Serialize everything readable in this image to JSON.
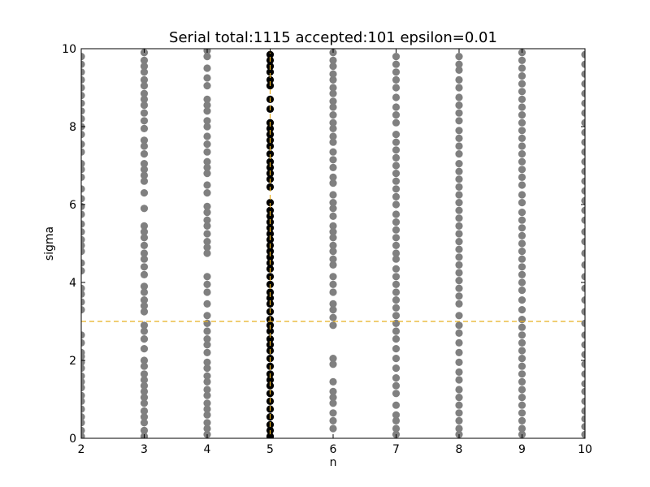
{
  "chart_data": {
    "type": "scatter",
    "title": "Serial total:1115 accepted:101 epsilon=0.01",
    "xlabel": "n",
    "ylabel": "sigma",
    "xlim": [
      2,
      10
    ],
    "ylim": [
      0,
      10
    ],
    "xticks": [
      "2",
      "3",
      "4",
      "5",
      "6",
      "7",
      "8",
      "9",
      "10"
    ],
    "yticks": [
      "0",
      "2",
      "4",
      "6",
      "8",
      "10"
    ],
    "grid": false,
    "reference_line": {
      "axis": "y",
      "value": 3,
      "style": "dashed",
      "color": "#e8b020"
    },
    "reference_vline": {
      "axis": "x",
      "value": 5,
      "style": "dashed",
      "color": "#e8b020"
    },
    "colors": {
      "rejected": "#808080",
      "accepted": "#000000"
    },
    "series": [
      {
        "color": "#808080",
        "points": [
          {
            "x": 2,
            "ys": [
              0.05,
              0.2,
              0.4,
              0.55,
              0.75,
              0.95,
              1.1,
              1.3,
              1.45,
              1.6,
              1.8,
              1.95,
              2.1,
              2.2,
              2.45,
              2.65,
              3.3,
              3.5,
              3.7,
              3.85,
              4.3,
              4.5,
              4.8,
              4.95,
              5.1,
              5.3,
              5.5,
              5.75,
              5.95,
              6.15,
              6.4,
              6.7,
              6.9,
              7.05,
              7.35,
              7.55,
              7.8,
              8.0,
              8.2,
              8.4,
              8.6,
              8.8,
              9.0,
              9.2,
              9.4,
              9.6,
              9.8
            ]
          },
          {
            "x": 3,
            "ys": [
              0.05,
              0.2,
              0.4,
              0.55,
              0.7,
              0.9,
              1.05,
              1.2,
              1.35,
              1.5,
              1.65,
              1.85,
              2.0,
              2.3,
              2.55,
              2.75,
              2.9,
              3.25,
              3.4,
              3.55,
              3.75,
              3.9,
              4.2,
              4.4,
              4.6,
              4.75,
              4.95,
              5.15,
              5.3,
              5.45,
              5.9,
              6.3,
              6.6,
              6.75,
              6.9,
              7.05,
              7.3,
              7.5,
              7.65,
              7.95,
              8.15,
              8.35,
              8.55,
              8.7,
              8.85,
              9.05,
              9.2,
              9.4,
              9.55,
              9.7,
              9.9
            ]
          },
          {
            "x": 4,
            "ys": [
              0.1,
              0.25,
              0.4,
              0.6,
              0.75,
              0.9,
              1.1,
              1.25,
              1.45,
              1.6,
              1.8,
              1.95,
              2.2,
              2.4,
              2.55,
              2.75,
              2.95,
              3.15,
              3.45,
              3.75,
              3.95,
              4.15,
              4.75,
              4.9,
              5.05,
              5.25,
              5.45,
              5.6,
              5.8,
              5.95,
              6.3,
              6.5,
              6.8,
              6.95,
              7.1,
              7.35,
              7.55,
              7.75,
              8.0,
              8.15,
              8.4,
              8.55,
              8.7,
              9.05,
              9.25,
              9.5,
              9.8,
              9.95
            ]
          },
          {
            "x": 6,
            "ys": [
              0.25,
              0.45,
              0.65,
              0.9,
              1.05,
              1.2,
              1.45,
              1.9,
              2.05,
              2.9,
              3.1,
              3.3,
              3.45,
              3.75,
              3.95,
              4.15,
              4.45,
              4.6,
              4.8,
              4.95,
              5.15,
              5.3,
              5.45,
              5.7,
              5.9,
              6.05,
              6.25,
              6.55,
              6.7,
              6.95,
              7.15,
              7.35,
              7.6,
              7.75,
              7.95,
              8.1,
              8.3,
              8.5,
              8.65,
              8.85,
              9.0,
              9.2,
              9.35,
              9.55,
              9.7,
              9.9
            ]
          },
          {
            "x": 7,
            "ys": [
              0.1,
              0.25,
              0.45,
              0.6,
              0.85,
              1.15,
              1.35,
              1.55,
              1.8,
              2.05,
              2.3,
              2.55,
              2.75,
              2.95,
              3.15,
              3.35,
              3.55,
              3.75,
              3.95,
              4.15,
              4.35,
              4.6,
              4.75,
              4.95,
              5.15,
              5.35,
              5.55,
              5.75,
              6.0,
              6.2,
              6.4,
              6.6,
              6.8,
              7.0,
              7.2,
              7.4,
              7.6,
              7.8,
              8.1,
              8.3,
              8.5,
              8.75,
              9.0,
              9.2,
              9.4,
              9.6,
              9.8
            ]
          },
          {
            "x": 8,
            "ys": [
              0.1,
              0.25,
              0.45,
              0.65,
              0.85,
              1.05,
              1.25,
              1.5,
              1.7,
              1.95,
              2.2,
              2.45,
              2.7,
              2.9,
              3.15,
              3.45,
              3.65,
              3.85,
              4.05,
              4.25,
              4.45,
              4.65,
              4.85,
              5.05,
              5.25,
              5.45,
              5.65,
              5.85,
              6.05,
              6.25,
              6.45,
              6.65,
              6.85,
              7.05,
              7.3,
              7.5,
              7.7,
              7.9,
              8.15,
              8.35,
              8.55,
              8.75,
              9.0,
              9.2,
              9.45,
              9.6,
              9.8
            ]
          },
          {
            "x": 9,
            "ys": [
              0.1,
              0.25,
              0.45,
              0.65,
              0.85,
              1.05,
              1.25,
              1.45,
              1.65,
              1.85,
              2.05,
              2.25,
              2.45,
              2.65,
              2.85,
              3.05,
              3.3,
              3.55,
              3.8,
              4.0,
              4.2,
              4.4,
              4.6,
              4.8,
              5.0,
              5.2,
              5.4,
              5.6,
              5.8,
              6.05,
              6.25,
              6.5,
              6.7,
              6.9,
              7.1,
              7.3,
              7.5,
              7.7,
              7.9,
              8.1,
              8.3,
              8.5,
              8.7,
              8.9,
              9.1,
              9.3,
              9.5,
              9.7,
              9.9
            ]
          },
          {
            "x": 10,
            "ys": [
              0.1,
              0.3,
              0.5,
              0.7,
              0.95,
              1.2,
              1.4,
              1.65,
              1.9,
              2.15,
              2.4,
              2.65,
              2.95,
              3.25,
              3.55,
              3.85,
              4.15,
              4.45,
              4.75,
              5.05,
              5.3,
              5.6,
              5.85,
              6.1,
              6.35,
              6.6,
              6.85,
              7.1,
              7.35,
              7.6,
              7.85,
              8.1,
              8.35,
              8.6,
              8.85,
              9.1,
              9.35,
              9.6,
              9.85
            ]
          }
        ]
      },
      {
        "color": "#000000",
        "points": [
          {
            "x": 5,
            "ys": [
              0.05,
              0.2,
              0.35,
              0.55,
              0.75,
              0.95,
              1.15,
              1.35,
              1.5,
              1.65,
              1.85,
              2.05,
              2.25,
              2.4,
              2.55,
              2.75,
              2.9,
              3.05,
              3.25,
              3.45,
              3.6,
              3.75,
              3.95,
              4.15,
              4.35,
              4.5,
              4.65,
              4.8,
              4.95,
              5.1,
              5.25,
              5.4,
              5.55,
              5.7,
              5.85,
              6.05,
              6.45,
              6.65,
              6.8,
              6.95,
              7.1,
              7.3,
              7.5,
              7.65,
              7.8,
              7.95,
              8.1,
              8.45,
              8.7,
              9.05,
              9.2,
              9.4,
              9.55,
              9.7,
              9.85
            ]
          }
        ]
      }
    ]
  }
}
